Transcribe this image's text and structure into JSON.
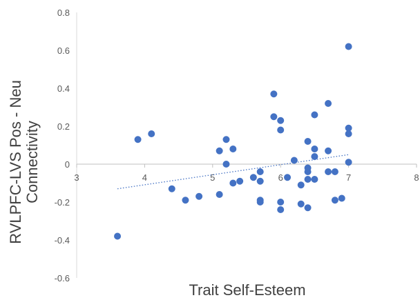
{
  "chart_data": {
    "type": "scatter",
    "title": "",
    "xlabel": "Trait Self-Esteem",
    "ylabel_lines": [
      "RVLPFC-LVS Pos - Neu",
      "Connectivity"
    ],
    "xlim": [
      3,
      8
    ],
    "ylim": [
      -0.6,
      0.8
    ],
    "x_ticks": [
      3,
      4,
      5,
      6,
      7,
      8
    ],
    "y_ticks": [
      -0.6,
      -0.4,
      -0.2,
      0,
      0.2,
      0.4,
      0.6,
      0.8
    ],
    "x_tick_labels": [
      "3",
      "4",
      "5",
      "6",
      "7",
      "8"
    ],
    "y_tick_labels": [
      "-0.6",
      "-0.4",
      "-0.2",
      "0",
      "0.2",
      "0.4",
      "0.6",
      "0.8"
    ],
    "grid": false,
    "marker_color": "#4472C4",
    "trendline": {
      "type": "linear",
      "style": "dotted",
      "x": [
        3.6,
        7.0
      ],
      "y": [
        -0.13,
        0.05
      ]
    },
    "points": [
      {
        "x": 3.6,
        "y": -0.38
      },
      {
        "x": 3.9,
        "y": 0.13
      },
      {
        "x": 4.1,
        "y": 0.16
      },
      {
        "x": 4.4,
        "y": -0.13
      },
      {
        "x": 4.6,
        "y": -0.19
      },
      {
        "x": 4.8,
        "y": -0.17
      },
      {
        "x": 5.1,
        "y": 0.07
      },
      {
        "x": 5.1,
        "y": -0.16
      },
      {
        "x": 5.2,
        "y": 0.13
      },
      {
        "x": 5.2,
        "y": 0.0
      },
      {
        "x": 5.3,
        "y": 0.08
      },
      {
        "x": 5.3,
        "y": -0.1
      },
      {
        "x": 5.4,
        "y": -0.09
      },
      {
        "x": 5.6,
        "y": -0.07
      },
      {
        "x": 5.7,
        "y": -0.04
      },
      {
        "x": 5.7,
        "y": -0.09
      },
      {
        "x": 5.7,
        "y": -0.19
      },
      {
        "x": 5.7,
        "y": -0.2
      },
      {
        "x": 5.9,
        "y": 0.37
      },
      {
        "x": 5.9,
        "y": 0.25
      },
      {
        "x": 6.0,
        "y": 0.23
      },
      {
        "x": 6.0,
        "y": 0.18
      },
      {
        "x": 6.0,
        "y": -0.2
      },
      {
        "x": 6.0,
        "y": -0.24
      },
      {
        "x": 6.1,
        "y": -0.07
      },
      {
        "x": 6.2,
        "y": 0.02
      },
      {
        "x": 6.3,
        "y": -0.11
      },
      {
        "x": 6.3,
        "y": -0.21
      },
      {
        "x": 6.4,
        "y": 0.12
      },
      {
        "x": 6.4,
        "y": -0.02
      },
      {
        "x": 6.4,
        "y": -0.04
      },
      {
        "x": 6.4,
        "y": -0.08
      },
      {
        "x": 6.4,
        "y": -0.23
      },
      {
        "x": 6.5,
        "y": 0.26
      },
      {
        "x": 6.5,
        "y": 0.08
      },
      {
        "x": 6.5,
        "y": 0.04
      },
      {
        "x": 6.5,
        "y": -0.08
      },
      {
        "x": 6.7,
        "y": 0.32
      },
      {
        "x": 6.7,
        "y": 0.07
      },
      {
        "x": 6.7,
        "y": -0.04
      },
      {
        "x": 6.8,
        "y": -0.04
      },
      {
        "x": 6.8,
        "y": -0.19
      },
      {
        "x": 6.9,
        "y": -0.18
      },
      {
        "x": 7.0,
        "y": 0.62
      },
      {
        "x": 7.0,
        "y": 0.19
      },
      {
        "x": 7.0,
        "y": 0.16
      },
      {
        "x": 7.0,
        "y": 0.01
      }
    ]
  }
}
